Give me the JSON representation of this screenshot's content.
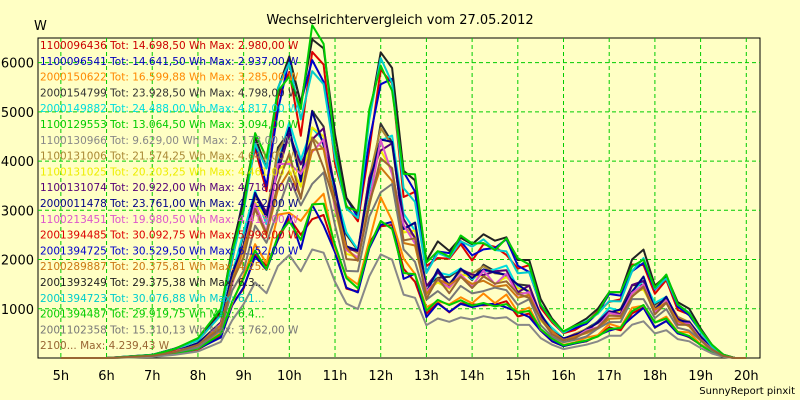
{
  "chart_data": {
    "type": "line",
    "title": "Wechselrichtervergleich vom 27.05.2012",
    "ylabel": "W",
    "xlabel": "",
    "credit": "SunnyReport pinxit",
    "ylim": [
      0,
      6500
    ],
    "xlim": [
      4.5,
      20.3
    ],
    "yticks": [
      1000,
      2000,
      3000,
      4000,
      5000,
      6000
    ],
    "ytick_labels": [
      "1000",
      "2000",
      "3000",
      "4000",
      "5000",
      "6000"
    ],
    "xticks": [
      5,
      6,
      7,
      8,
      9,
      10,
      11,
      12,
      13,
      14,
      15,
      16,
      17,
      18,
      19,
      20
    ],
    "xtick_labels": [
      "5h",
      "6h",
      "7h",
      "8h",
      "9h",
      "10h",
      "11h",
      "12h",
      "13h",
      "14h",
      "15h",
      "16h",
      "17h",
      "18h",
      "19h",
      "20h"
    ],
    "grid": true,
    "x": [
      5,
      6,
      7,
      7.5,
      8,
      8.5,
      8.75,
      9,
      9.25,
      9.5,
      9.75,
      10,
      10.25,
      10.5,
      10.75,
      11,
      11.25,
      11.5,
      11.75,
      12,
      12.25,
      12.5,
      12.75,
      13,
      13.25,
      13.5,
      13.75,
      14,
      14.25,
      14.5,
      14.75,
      15,
      15.25,
      15.5,
      15.75,
      16,
      16.25,
      16.5,
      16.75,
      17,
      17.25,
      17.5,
      17.75,
      18,
      18.25,
      18.5,
      18.75,
      19,
      19.25,
      19.5,
      19.75,
      20
    ],
    "profile": [
      0,
      0,
      0.01,
      0.03,
      0.06,
      0.15,
      0.35,
      0.5,
      0.7,
      0.6,
      0.85,
      0.95,
      0.8,
      1.0,
      0.97,
      0.7,
      0.5,
      0.45,
      0.75,
      0.95,
      0.9,
      0.58,
      0.55,
      0.3,
      0.36,
      0.33,
      0.37,
      0.35,
      0.38,
      0.36,
      0.37,
      0.3,
      0.3,
      0.18,
      0.12,
      0.08,
      0.1,
      0.12,
      0.15,
      0.2,
      0.2,
      0.3,
      0.33,
      0.22,
      0.25,
      0.17,
      0.15,
      0.09,
      0.04,
      0.01,
      0,
      0
    ],
    "legend_position": "left",
    "series": [
      {
        "id": "1100096436",
        "label": "1100096436 Tot: 14.698,50 Wh Max: 2.980,00 W",
        "color": "#cc0000",
        "peak": 2980
      },
      {
        "id": "1100096541",
        "label": "1100096541 Tot: 14.641,50 Wh Max: 2.937,00 W",
        "color": "#0000bb",
        "peak": 2937
      },
      {
        "id": "2000150622",
        "label": "2000150622 Tot: 16.599,88 Wh Max: 3.285,00 W",
        "color": "#ff8800",
        "peak": 3285
      },
      {
        "id": "2000154799",
        "label": "2000154799 Tot: 23.928,50 Wh Max: 4.798,00 W",
        "color": "#333333",
        "peak": 4798
      },
      {
        "id": "2000149882",
        "label": "2000149882 Tot: 24.488,00 Wh Max: 4.817,00 W",
        "color": "#00dddd",
        "peak": 4817
      },
      {
        "id": "1100129553",
        "label": "1100129553 Tot: 13.064,50 Wh Max: 3.094,00 W",
        "color": "#00cc00",
        "peak": 3094
      },
      {
        "id": "1100130966",
        "label": "1100130966 Tot: 9.629,00 Wh Max: 2.173,00 W",
        "color": "#888888",
        "peak": 2173
      },
      {
        "id": "1100131006",
        "label": "1100131006 Tot: 21.574,25 Wh Max: 4.641,00 W",
        "color": "#aa8833",
        "peak": 4641
      },
      {
        "id": "1100131025",
        "label": "1100131025 Tot: 20.203,25 Wh Max: 4.461,00 W",
        "color": "#eeee00",
        "peak": 4461
      },
      {
        "id": "1100131074",
        "label": "1100131074 Tot: 20.922,00 Wh Max: 4.718,00 W",
        "color": "#550077",
        "peak": 4718
      },
      {
        "id": "2000011478",
        "label": "2000011478 Tot: 23.761,00 Wh Max: 4.732,00 W",
        "color": "#000088",
        "peak": 4732
      },
      {
        "id": "1100213451",
        "label": "1100213451 Tot: 19.980,50 Wh Max: 4.413,00 W",
        "color": "#dd55cc",
        "peak": 4413
      },
      {
        "id": "2001394485",
        "label": "2001394485 Tot: 30.092,75 Wh Max: 5.998,00 W",
        "color": "#dd0000",
        "peak": 5998
      },
      {
        "id": "2001394725",
        "label": "2001394725 Tot: 30.529,50 Wh Max: 6.152,00 W",
        "color": "#0000cc",
        "peak": 6152
      },
      {
        "id": "2100289887",
        "label": "2100289887 Tot: 20.375,81 Wh Max: 4.25...",
        "color": "#cc7711",
        "peak": 4250
      },
      {
        "id": "2001393249",
        "label": "2001393249 Tot: 29.375,38 Wh Max: 6.3...",
        "color": "#222222",
        "peak": 6300
      },
      {
        "id": "2001394723",
        "label": "2001394723 Tot: 30.076,88 Wh Max: 6.1...",
        "color": "#00cccc",
        "peak": 6100
      },
      {
        "id": "2001394487",
        "label": "2001394487 Tot: 29.919,75 Wh Max: 6.4...",
        "color": "#00cc00",
        "peak": 6400
      },
      {
        "id": "2001102358",
        "label": "2001102358 Tot: 15.310,13 Wh Max: 3.762,00 W",
        "color": "#777777",
        "peak": 3762
      },
      {
        "id": "2100...",
        "label": "2100... Max: 4.239,43 W",
        "color": "#996633",
        "peak": 4239
      }
    ]
  }
}
